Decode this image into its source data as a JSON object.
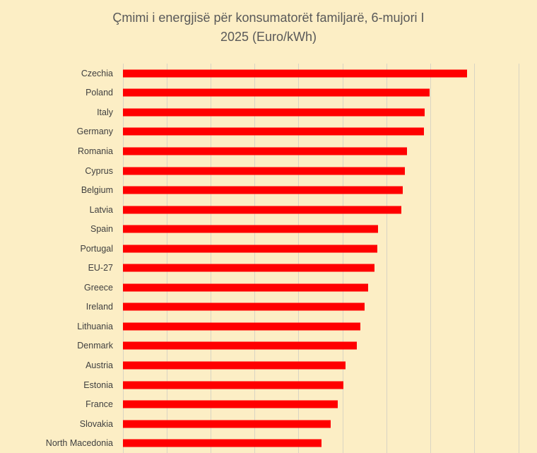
{
  "chart": {
    "title_line1": "Çmimi i energjisë për konsumatorët familjarë, 6-mujori I",
    "title_line2": "2025 (Euro/kWh)"
  },
  "chart_data": {
    "type": "bar",
    "orientation": "horizontal",
    "title": "Çmimi i energjisë për konsumatorët familjarë, 6-mujori I 2025 (Euro/kWh)",
    "categories": [
      "Czechia",
      "Poland",
      "Italy",
      "Germany",
      "Romania",
      "Cyprus",
      "Belgium",
      "Latvia",
      "Spain",
      "Portugal",
      "EU-27",
      "Greece",
      "Ireland",
      "Lithuania",
      "Denmark",
      "Austria",
      "Estonia",
      "France",
      "Slovakia",
      "North Macedonia"
    ],
    "values": [
      0.391,
      0.349,
      0.343,
      0.342,
      0.323,
      0.321,
      0.318,
      0.317,
      0.29,
      0.289,
      0.286,
      0.279,
      0.275,
      0.27,
      0.266,
      0.253,
      0.251,
      0.244,
      0.236,
      0.226
    ],
    "xlabel": "",
    "ylabel": "",
    "xlim": [
      0,
      0.45
    ],
    "gridline_step": 0.05,
    "grid": true,
    "legend": false,
    "x_axis_tick_labels_visible": false,
    "colors": {
      "bar": "#FF0000",
      "background": "#FCEEC5",
      "gridline": "#D9D4C3",
      "category_label": "#404040",
      "title": "#595959"
    }
  }
}
